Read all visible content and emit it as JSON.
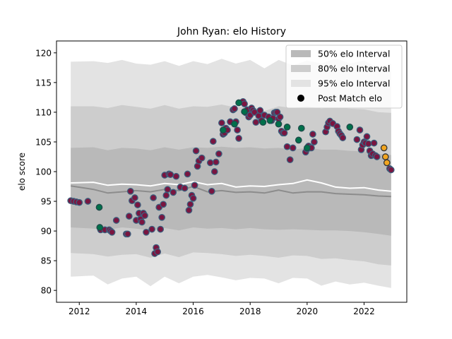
{
  "chart_data": {
    "type": "scatter",
    "title": "John Ryan: elo History",
    "xlabel": "",
    "ylabel": "elo score",
    "xlim": [
      2011.2,
      2023.5
    ],
    "ylim": [
      78,
      122
    ],
    "x_ticks": [
      2012,
      2014,
      2016,
      2018,
      2020,
      2022
    ],
    "y_ticks": [
      80,
      85,
      90,
      95,
      100,
      105,
      110,
      115,
      120
    ],
    "grid": false,
    "legend_position": "top-right",
    "legend": [
      {
        "label": "50% elo Interval",
        "kind": "patch",
        "color": "#b0b0b0"
      },
      {
        "label": "80% elo Interval",
        "kind": "patch",
        "color": "#cccccc"
      },
      {
        "label": "95% elo Interval",
        "kind": "patch",
        "color": "#e3e3e3"
      },
      {
        "label": "Post Match elo",
        "kind": "marker",
        "color": "#000000"
      }
    ],
    "colors": {
      "band95": "#e3e3e3",
      "band80": "#cdcdcd",
      "band50": "#b9b9b9",
      "median_line": "#8c8c8c",
      "mean_line": "#ffffff",
      "loss_fill": "#7a1540",
      "loss_edge": "#3b5f7d",
      "win_fill": "#00704a",
      "win_edge": "#1f4a4a",
      "recent_fill": "#f2a51f",
      "recent_edge": "#333333"
    },
    "bands": {
      "x": [
        2011.7,
        2012.5,
        2013.0,
        2013.5,
        2014.0,
        2014.5,
        2015.0,
        2015.5,
        2016.0,
        2016.5,
        2017.0,
        2017.5,
        2018.0,
        2018.5,
        2019.0,
        2019.5,
        2020.0,
        2020.5,
        2021.0,
        2021.5,
        2022.0,
        2022.5,
        2022.95
      ],
      "p95_hi": [
        118.5,
        118.6,
        118.3,
        118.8,
        118.2,
        118.0,
        118.6,
        117.8,
        118.6,
        118.1,
        119.0,
        118.2,
        118.8,
        117.4,
        118.8,
        117.9,
        118.7,
        118.2,
        119.1,
        118.2,
        118.7,
        117.4,
        118.2
      ],
      "p95_lo": [
        82.3,
        82.5,
        81.0,
        82.0,
        82.3,
        80.7,
        82.3,
        81.2,
        82.3,
        82.6,
        82.2,
        81.7,
        82.1,
        82.0,
        81.2,
        82.1,
        82.0,
        80.8,
        81.5,
        81.0,
        81.3,
        80.8,
        80.4
      ],
      "p80_hi": [
        111.0,
        111.0,
        110.7,
        111.2,
        110.9,
        110.6,
        111.2,
        110.6,
        111.0,
        110.9,
        111.3,
        110.8,
        111.1,
        110.2,
        111.0,
        110.7,
        111.0,
        110.6,
        110.8,
        110.6,
        110.5,
        110.0,
        109.9
      ],
      "p80_lo": [
        86.3,
        86.1,
        85.7,
        86.0,
        86.1,
        85.5,
        86.2,
        85.6,
        86.4,
        86.3,
        86.1,
        85.8,
        86.0,
        85.8,
        85.5,
        85.9,
        85.8,
        85.3,
        85.4,
        85.1,
        84.9,
        84.4,
        84.2
      ],
      "p50_hi": [
        104.0,
        104.1,
        103.6,
        104.0,
        103.9,
        103.6,
        104.1,
        103.7,
        104.1,
        104.0,
        104.2,
        104.0,
        104.1,
        103.9,
        104.0,
        103.7,
        104.0,
        103.7,
        103.7,
        103.5,
        103.4,
        103.0,
        102.8
      ],
      "p50_lo": [
        90.6,
        90.4,
        90.2,
        90.6,
        90.4,
        90.1,
        90.5,
        90.1,
        90.6,
        90.4,
        90.5,
        90.3,
        90.5,
        90.3,
        90.2,
        90.3,
        90.2,
        90.1,
        90.1,
        90.0,
        89.8,
        89.5,
        89.2
      ],
      "median": [
        97.6,
        97.0,
        96.4,
        96.6,
        96.8,
        96.6,
        97.0,
        96.8,
        97.5,
        96.6,
        96.8,
        96.5,
        96.6,
        96.4,
        96.9,
        96.4,
        96.6,
        96.6,
        96.3,
        96.2,
        96.1,
        95.9,
        95.8
      ],
      "mean": [
        98.1,
        98.2,
        97.7,
        97.9,
        97.8,
        97.6,
        98.0,
        97.8,
        98.3,
        97.8,
        98.0,
        97.4,
        97.6,
        97.5,
        97.8,
        98.0,
        98.6,
        98.1,
        97.4,
        97.2,
        97.3,
        96.9,
        96.7
      ]
    },
    "series": [
      {
        "marker_style": "loss",
        "x": [
          2011.7,
          2011.8,
          2011.9,
          2012.0,
          2012.3,
          2012.75,
          2012.9,
          2013.05,
          2013.1,
          2013.15,
          2013.3,
          2013.65,
          2013.7,
          2013.75,
          2013.8,
          2013.85,
          2013.95,
          2014.0,
          2014.05,
          2014.1,
          2014.15,
          2014.2,
          2014.25,
          2014.3,
          2014.35,
          2014.55,
          2014.6,
          2014.65,
          2014.7,
          2014.75,
          2014.8,
          2014.85,
          2014.9,
          2014.95,
          2015.0,
          2015.05,
          2015.1,
          2015.15,
          2015.2,
          2015.3,
          2015.4,
          2015.55,
          2015.7,
          2015.8,
          2015.85,
          2015.9,
          2015.95,
          2016.0,
          2016.05,
          2016.1,
          2016.15,
          2016.2,
          2016.3,
          2016.6,
          2016.65,
          2016.7,
          2016.75,
          2016.8,
          2016.9,
          2017.0,
          2017.05,
          2017.1,
          2017.15,
          2017.2,
          2017.3,
          2017.4,
          2017.45,
          2017.5,
          2017.55,
          2017.6,
          2017.75,
          2017.8,
          2017.85,
          2017.9,
          2017.95,
          2018.0,
          2018.05,
          2018.1,
          2018.15,
          2018.2,
          2018.3,
          2018.35,
          2018.4,
          2018.5,
          2018.65,
          2018.75,
          2018.8,
          2018.85,
          2018.9,
          2018.95,
          2019.0,
          2019.05,
          2019.1,
          2019.15,
          2019.2,
          2019.3,
          2019.4,
          2019.5,
          2019.95,
          2020.0,
          2020.05,
          2020.1,
          2020.15,
          2020.2,
          2020.25,
          2020.65,
          2020.7,
          2020.75,
          2020.8,
          2020.9,
          2021.05,
          2021.1,
          2021.15,
          2021.2,
          2021.25,
          2021.75,
          2021.85,
          2021.9,
          2021.95,
          2022.0,
          2022.05,
          2022.1,
          2022.15,
          2022.2,
          2022.25,
          2022.3,
          2022.35,
          2022.4,
          2022.45,
          2022.9,
          2022.95
        ],
        "y": [
          95.1,
          95.0,
          94.9,
          94.8,
          95.0,
          90.2,
          90.2,
          90.2,
          90.0,
          89.8,
          91.8,
          89.5,
          89.5,
          92.5,
          96.7,
          95.1,
          95.6,
          91.8,
          94.4,
          93.0,
          92.0,
          91.5,
          93.0,
          92.6,
          89.8,
          90.3,
          95.6,
          86.2,
          87.2,
          86.5,
          94.0,
          90.3,
          92.3,
          94.5,
          99.4,
          96.0,
          97.0,
          99.6,
          99.5,
          96.5,
          99.2,
          97.4,
          97.2,
          99.6,
          93.5,
          94.5,
          96.0,
          95.5,
          97.7,
          103.5,
          100.9,
          101.8,
          102.3,
          101.5,
          96.7,
          105.1,
          100.0,
          101.6,
          103.0,
          108.2,
          106.3,
          106.5,
          107.3,
          107.0,
          108.4,
          110.4,
          110.6,
          108.4,
          107.0,
          105.6,
          111.8,
          111.4,
          109.9,
          110.4,
          109.2,
          109.5,
          110.7,
          110.3,
          110.0,
          108.3,
          109.4,
          110.3,
          108.6,
          109.5,
          109.2,
          108.6,
          109.0,
          109.9,
          110.0,
          110.0,
          108.9,
          109.2,
          106.8,
          106.5,
          106.5,
          104.2,
          102.0,
          104.0,
          103.3,
          103.8,
          104.3,
          104.0,
          104.0,
          106.3,
          105.0,
          106.7,
          107.5,
          108.2,
          108.5,
          108.1,
          107.6,
          106.8,
          106.4,
          106.1,
          105.7,
          105.4,
          107.0,
          103.7,
          104.5,
          105.0,
          104.8,
          105.9,
          104.7,
          103.5,
          102.7,
          103.0,
          104.8,
          102.7,
          102.5,
          100.5,
          100.3
        ]
      },
      {
        "marker_style": "win",
        "x": [
          2012.7,
          2012.72,
          2017.05,
          2017.45,
          2017.6,
          2017.8,
          2018.45,
          2018.7,
          2019.0,
          2019.3,
          2019.7,
          2019.8,
          2020.0,
          2021.5
        ],
        "y": [
          94.0,
          90.6,
          107.0,
          108.0,
          111.6,
          110.1,
          108.3,
          108.6,
          108.0,
          107.5,
          105.3,
          107.3,
          104.0,
          107.5
        ]
      },
      {
        "marker_style": "recent",
        "x": [
          2022.7,
          2022.75,
          2022.8
        ],
        "y": [
          104.0,
          102.5,
          101.5
        ]
      }
    ]
  }
}
